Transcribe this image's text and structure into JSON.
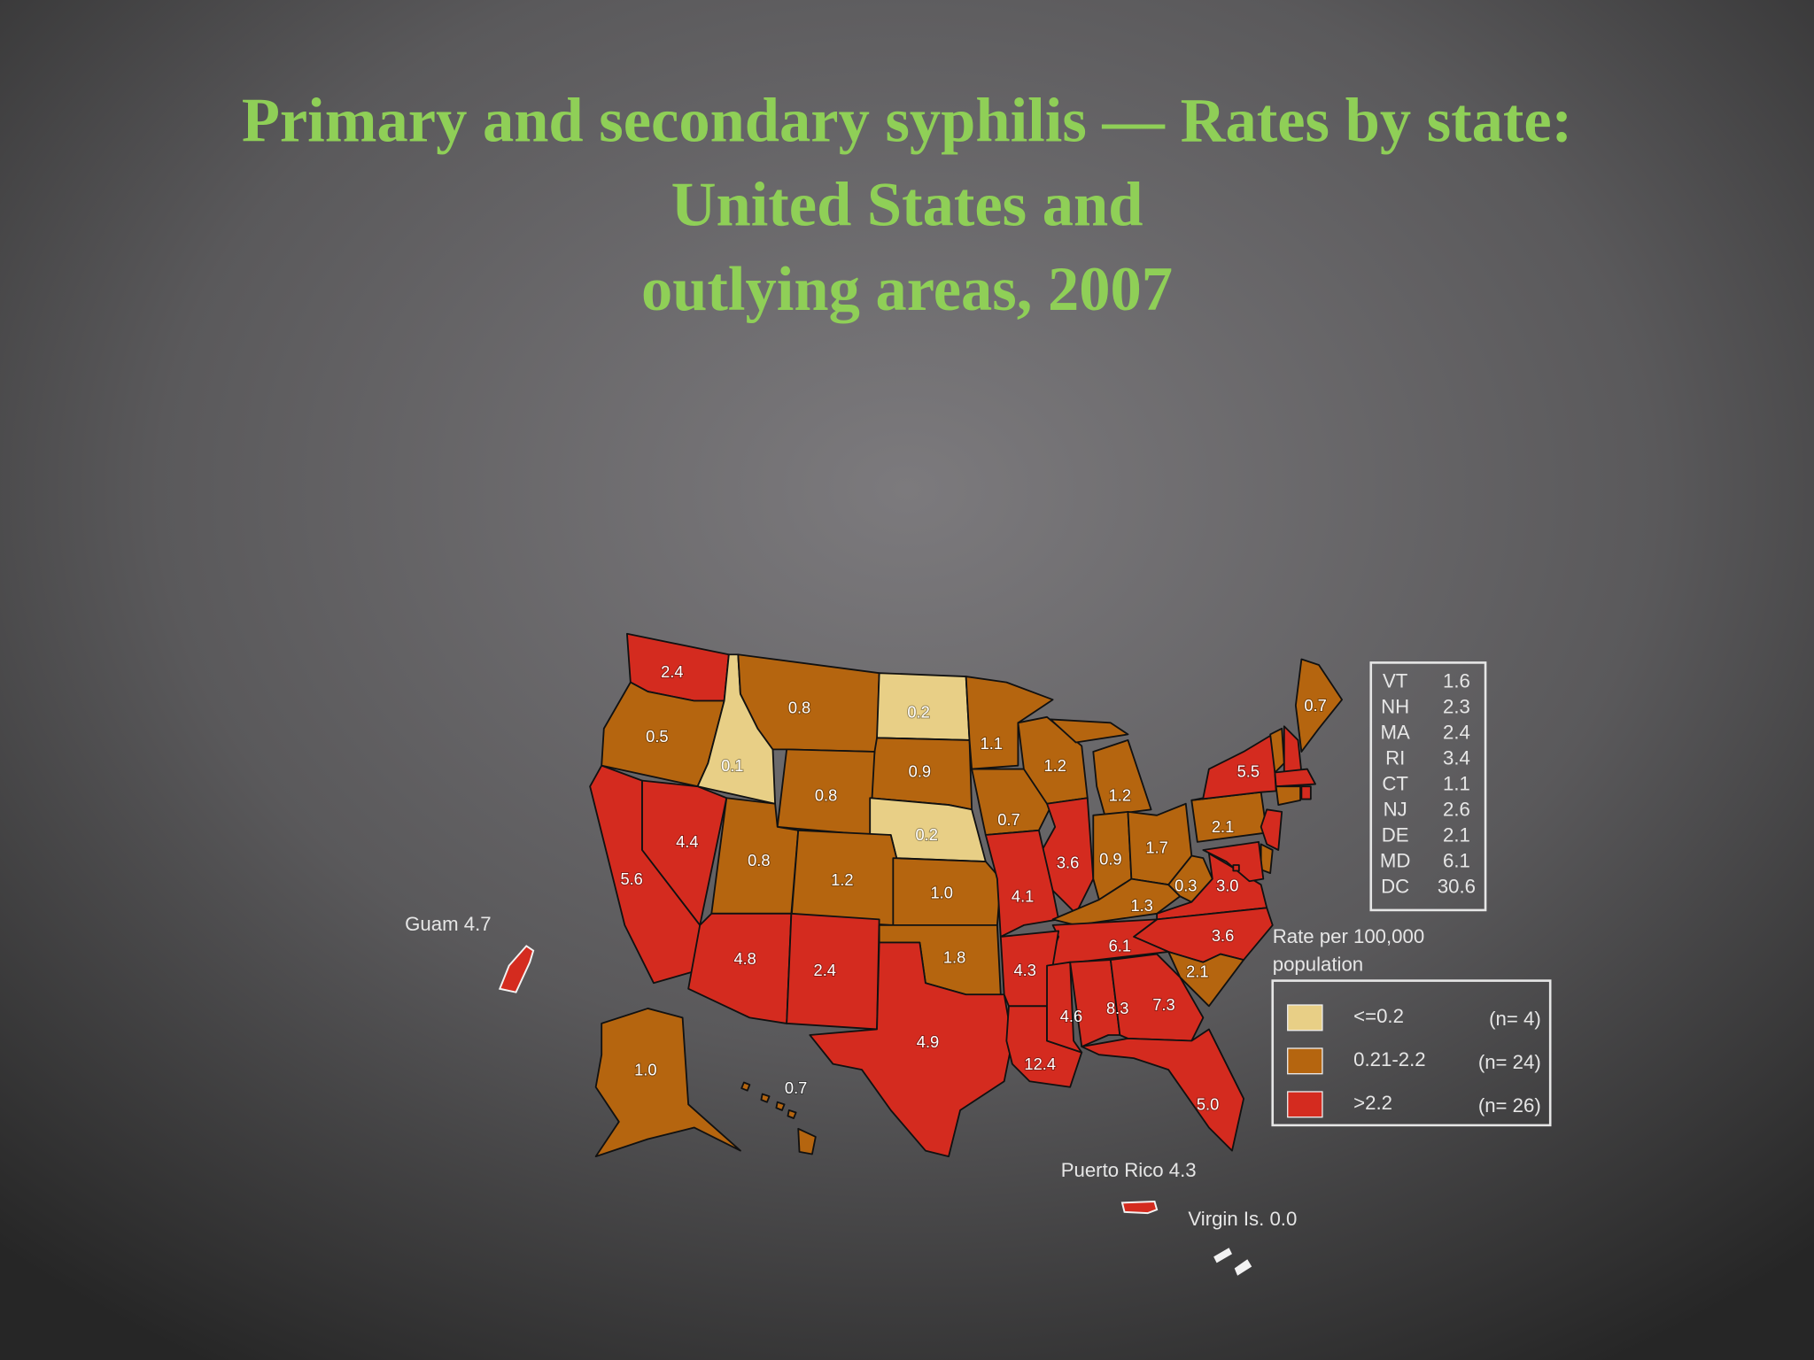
{
  "title_lines": [
    "Primary and secondary syphilis — Rates by state:",
    "United States and",
    "outlying areas, 2007"
  ],
  "map": {
    "regions": [
      {
        "label": "2.4",
        "color": "#d42b1f"
      },
      {
        "label": "0.5",
        "color": "#b5650f"
      },
      {
        "label": "0.1",
        "color": "#e8cf86"
      },
      {
        "label": "0.8",
        "color": "#b5650f"
      },
      {
        "label": "0.2",
        "color": "#e8cf86"
      },
      {
        "label": "0.9",
        "color": "#b5650f"
      },
      {
        "label": "0.8",
        "color": "#b5650f"
      },
      {
        "label": "0.2",
        "color": "#e8cf86"
      },
      {
        "label": "1.1",
        "color": "#b5650f"
      },
      {
        "label": "0.7",
        "color": "#b5650f"
      },
      {
        "label": "1.2",
        "color": "#b5650f"
      },
      {
        "label": "1.2",
        "color": "#b5650f"
      },
      {
        "label": "3.6",
        "color": "#d42b1f"
      },
      {
        "label": "0.9",
        "color": "#b5650f"
      },
      {
        "label": "1.7",
        "color": "#b5650f"
      },
      {
        "label": "2.1",
        "color": "#b5650f"
      },
      {
        "label": "5.5",
        "color": "#d42b1f"
      },
      {
        "label": "0.7",
        "color": "#b5650f"
      },
      {
        "label": "4.4",
        "color": "#d42b1f"
      },
      {
        "label": "5.6",
        "color": "#d42b1f"
      },
      {
        "label": "0.8",
        "color": "#b5650f"
      },
      {
        "label": "1.2",
        "color": "#b5650f"
      },
      {
        "label": "1.0",
        "color": "#b5650f"
      },
      {
        "label": "4.1",
        "color": "#d42b1f"
      },
      {
        "label": "1.3",
        "color": "#b5650f"
      },
      {
        "label": "0.3",
        "color": "#b5650f"
      },
      {
        "label": "3.0",
        "color": "#d42b1f"
      },
      {
        "label": "3.6",
        "color": "#d42b1f"
      },
      {
        "label": "6.1",
        "color": "#d42b1f"
      },
      {
        "label": "2.1",
        "color": "#b5650f"
      },
      {
        "label": "4.8",
        "color": "#d42b1f"
      },
      {
        "label": "2.4",
        "color": "#d42b1f"
      },
      {
        "label": "1.8",
        "color": "#b5650f"
      },
      {
        "label": "4.9",
        "color": "#d42b1f"
      },
      {
        "label": "4.3",
        "color": "#d42b1f"
      },
      {
        "label": "12.4",
        "color": "#d42b1f"
      },
      {
        "label": "4.6",
        "color": "#d42b1f"
      },
      {
        "label": "8.3",
        "color": "#d42b1f"
      },
      {
        "label": "7.3",
        "color": "#d42b1f"
      },
      {
        "label": "5.0",
        "color": "#d42b1f"
      },
      {
        "label": "1.0",
        "color": "#b5650f"
      },
      {
        "label": "0.7",
        "color": "#b5650f"
      }
    ],
    "small_states": [
      {
        "state": "VT",
        "rate": "1.6",
        "color": "#b5650f"
      },
      {
        "state": "NH",
        "rate": "2.3",
        "color": "#d42b1f"
      },
      {
        "state": "MA",
        "rate": "2.4",
        "color": "#d42b1f"
      },
      {
        "state": "RI",
        "rate": "3.4",
        "color": "#d42b1f"
      },
      {
        "state": "CT",
        "rate": "1.1",
        "color": "#b5650f"
      },
      {
        "state": "NJ",
        "rate": "2.6",
        "color": "#d42b1f"
      },
      {
        "state": "DE",
        "rate": "2.1",
        "color": "#b5650f"
      },
      {
        "state": "MD",
        "rate": "6.1",
        "color": "#d42b1f"
      },
      {
        "state": "DC",
        "rate": "30.6",
        "color": "#d42b1f"
      }
    ],
    "outlying": [
      {
        "label": "Guam 4.7",
        "color": "#d42b1f"
      },
      {
        "label": "Puerto Rico 4.3",
        "color": "#d42b1f"
      },
      {
        "label": "Virgin Is. 0.0",
        "color": "#f2f2f2"
      }
    ]
  },
  "legend": {
    "title_lines": [
      "Rate per 100,000",
      "population"
    ],
    "classes": [
      {
        "color": "#e8cf86",
        "range": "<=0.2",
        "count": "(n=  4)"
      },
      {
        "color": "#b5650f",
        "range": "0.21-2.2",
        "count": "(n= 24)"
      },
      {
        "color": "#d42b1f",
        "range": ">2.2",
        "count": "(n= 26)"
      }
    ]
  }
}
